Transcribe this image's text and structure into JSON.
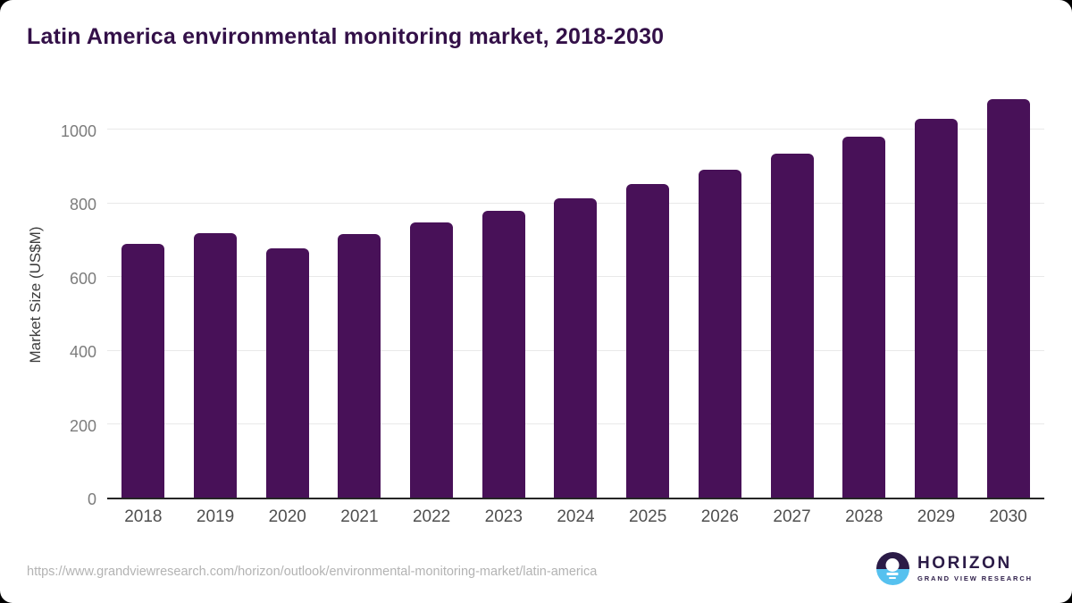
{
  "chart_data": {
    "type": "bar",
    "title": "Latin America environmental monitoring market, 2018-2030",
    "categories": [
      "2018",
      "2019",
      "2020",
      "2021",
      "2022",
      "2023",
      "2024",
      "2025",
      "2026",
      "2027",
      "2028",
      "2029",
      "2030"
    ],
    "values": [
      692,
      721,
      680,
      718,
      750,
      782,
      817,
      856,
      895,
      937,
      985,
      1032,
      1086
    ],
    "xlabel": "",
    "ylabel": "Market Size (US$M)",
    "ylim": [
      0,
      1113
    ],
    "yticks": [
      0,
      200,
      400,
      600,
      800,
      1000
    ],
    "grid": "horizontal",
    "legend": "none",
    "bar_corner_radius": "rounded-top"
  },
  "footer": {
    "source_url": "https://www.grandviewresearch.com/horizon/outlook/environmental-monitoring-market/latin-america",
    "logo": {
      "brand": "HORIZON",
      "tagline": "GRAND VIEW RESEARCH"
    }
  },
  "colors": {
    "background": "#000000",
    "card": "#ffffff",
    "bar": "#481158",
    "title": "#331048",
    "axis_line": "#262626",
    "gridline": "#e9e9e9",
    "ytick_label": "#7c7c7c",
    "xtick_label": "#4f4f4f",
    "axis_title": "#3d3d3d",
    "url_text": "#b3b3b3",
    "logo_purple": "#2b1b47",
    "logo_blue": "#56c1ef"
  }
}
